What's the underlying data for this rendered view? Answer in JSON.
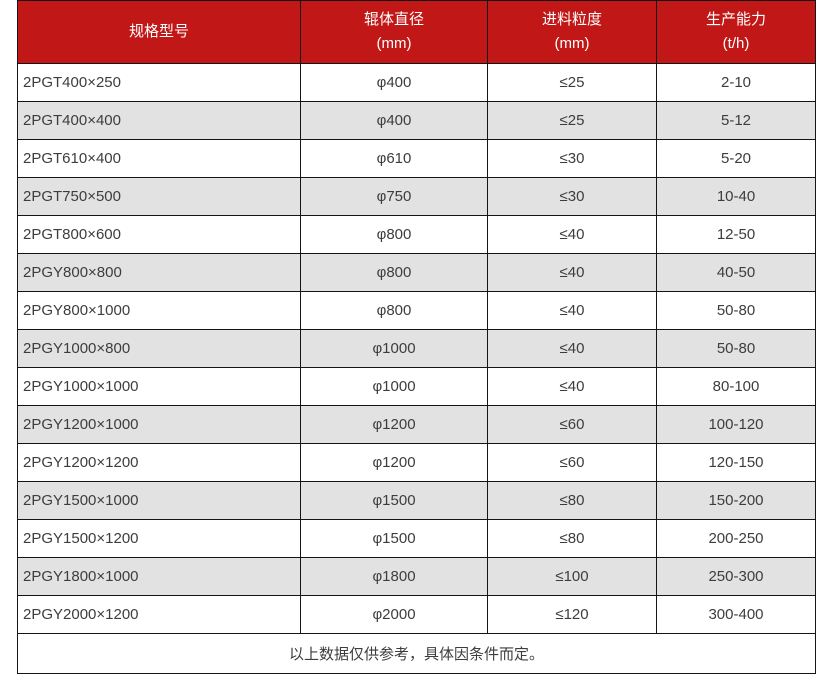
{
  "colors": {
    "header_bg": "#c11717",
    "header_text": "#ffffff",
    "row_bg": "#ffffff",
    "row_alt_bg": "#e2e2e2",
    "border": "#151515",
    "body_text": "#3d3d3d"
  },
  "chart_data": {
    "type": "table",
    "columns": [
      "规格型号",
      "辊体直径 (mm)",
      "进料粒度 (mm)",
      "生产能力 (t/h)"
    ],
    "header_lines": [
      [
        "规格型号",
        ""
      ],
      [
        "辊体直径",
        "(mm)"
      ],
      [
        "进料粒度",
        "(mm)"
      ],
      [
        "生产能力",
        "(t/h)"
      ]
    ],
    "rows": [
      [
        "2PGT400×250",
        "φ400",
        "≤25",
        "2-10"
      ],
      [
        "2PGT400×400",
        "φ400",
        "≤25",
        "5-12"
      ],
      [
        "2PGT610×400",
        "φ610",
        "≤30",
        "5-20"
      ],
      [
        "2PGT750×500",
        "φ750",
        "≤30",
        "10-40"
      ],
      [
        "2PGT800×600",
        "φ800",
        "≤40",
        "12-50"
      ],
      [
        "2PGY800×800",
        "φ800",
        "≤40",
        "40-50"
      ],
      [
        "2PGY800×1000",
        "φ800",
        "≤40",
        "50-80"
      ],
      [
        "2PGY1000×800",
        "φ1000",
        "≤40",
        "50-80"
      ],
      [
        "2PGY1000×1000",
        "φ1000",
        "≤40",
        "80-100"
      ],
      [
        "2PGY1200×1000",
        "φ1200",
        "≤60",
        "100-120"
      ],
      [
        "2PGY1200×1200",
        "φ1200",
        "≤60",
        "120-150"
      ],
      [
        "2PGY1500×1000",
        "φ1500",
        "≤80",
        "150-200"
      ],
      [
        "2PGY1500×1200",
        "φ1500",
        "≤80",
        "200-250"
      ],
      [
        "2PGY1800×1000",
        "φ1800",
        "≤100",
        "250-300"
      ],
      [
        "2PGY2000×1200",
        "φ2000",
        "≤120",
        "300-400"
      ]
    ],
    "footnote": "以上数据仅供参考，具体因条件而定。"
  }
}
